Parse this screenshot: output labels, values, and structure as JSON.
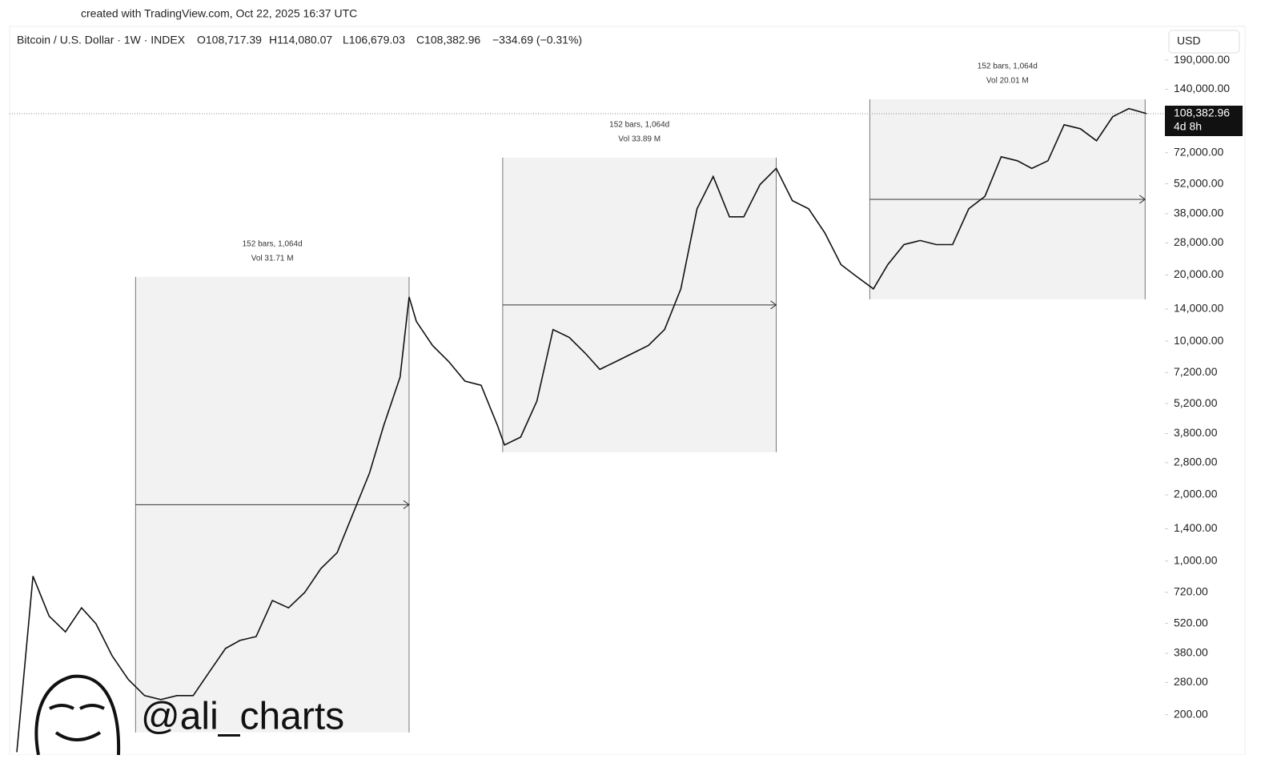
{
  "header": {
    "credit": "created with TradingView.com, Oct 22, 2025 16:37 UTC"
  },
  "chart_data": {
    "type": "line",
    "symbol": "Bitcoin / U.S. Dollar · 1W · INDEX",
    "ohlc": [
      "O108,717.39",
      "H114,080.07",
      "L106,679.03",
      "C108,382.96",
      "−334.69 (−0.31%)"
    ],
    "currency": "USD",
    "log_scale": true,
    "color": "#111111",
    "x": [
      0,
      9,
      18,
      27,
      36,
      44,
      53,
      62,
      71,
      80,
      89,
      98,
      107,
      116,
      124,
      133,
      142,
      151,
      160,
      169,
      178,
      187,
      196,
      204,
      213,
      218,
      222,
      231,
      240,
      249,
      258,
      267,
      271,
      280,
      289,
      298,
      307,
      316,
      324,
      333,
      342,
      351,
      360,
      369,
      378,
      387,
      396,
      404,
      413,
      422,
      431,
      440,
      449,
      458,
      467,
      476,
      484,
      493,
      502,
      511,
      520,
      529,
      538,
      547,
      556,
      564,
      573,
      582,
      591,
      600,
      609,
      618,
      628
    ],
    "values": [
      135,
      853,
      561,
      476,
      612,
      518,
      370,
      289,
      244,
      234,
      244,
      244,
      313,
      400,
      435,
      453,
      661,
      612,
      719,
      923,
      1091,
      1655,
      2511,
      4157,
      6857,
      15900,
      12300,
      9560,
      8080,
      6580,
      6300,
      4157,
      3370,
      3660,
      5340,
      11300,
      10400,
      8790,
      7440,
      8080,
      8790,
      9560,
      11300,
      17300,
      40000,
      56100,
      36800,
      36800,
      51600,
      61100,
      43600,
      40000,
      31100,
      22300,
      19600,
      17300,
      22300,
      27500,
      28700,
      27500,
      27500,
      40000,
      45600,
      69000,
      66200,
      61100,
      66200,
      96500,
      92600,
      81600,
      105000,
      114400,
      108383
    ],
    "xlim": [
      -4,
      638
    ],
    "ylim": [
      131,
      212000
    ],
    "yticks": [
      {
        "value": 190000,
        "label": "190,000.00"
      },
      {
        "value": 140000,
        "label": "140,000.00"
      },
      {
        "value": 72000,
        "label": "72,000.00"
      },
      {
        "value": 52000,
        "label": "52,000.00"
      },
      {
        "value": 38000,
        "label": "38,000.00"
      },
      {
        "value": 28000,
        "label": "28,000.00"
      },
      {
        "value": 20000,
        "label": "20,000.00"
      },
      {
        "value": 14000,
        "label": "14,000.00"
      },
      {
        "value": 10000,
        "label": "10,000.00"
      },
      {
        "value": 7200,
        "label": "7,200.00"
      },
      {
        "value": 5200,
        "label": "5,200.00"
      },
      {
        "value": 3800,
        "label": "3,800.00"
      },
      {
        "value": 2800,
        "label": "2,800.00"
      },
      {
        "value": 2000,
        "label": "2,000.00"
      },
      {
        "value": 1400,
        "label": "1,400.00"
      },
      {
        "value": 1000,
        "label": "1,000.00"
      },
      {
        "value": 720,
        "label": "720.00"
      },
      {
        "value": 520,
        "label": "520.00"
      },
      {
        "value": 380,
        "label": "380.00"
      },
      {
        "value": 280,
        "label": "280.00"
      },
      {
        "value": 200,
        "label": "200.00"
      }
    ],
    "last_price": {
      "value": 108382.96,
      "label": "108,382.96"
    },
    "countdown": "4d 8h",
    "ranges": [
      {
        "x_range": [
          66,
          218
        ],
        "price_range": [
          166,
          19600
        ],
        "bars": "152 bars, 1,064d",
        "vol": "Vol 31.71 M"
      },
      {
        "x_range": [
          270,
          422
        ],
        "price_range": [
          3125,
          68400
        ],
        "bars": "152 bars, 1,064d",
        "vol": "Vol 33.89 M"
      },
      {
        "x_range": [
          474,
          627
        ],
        "price_range": [
          15500,
          126000
        ],
        "bars": "152 bars, 1,064d",
        "vol": "Vol 20.01 M"
      }
    ],
    "watermark": "@ali_charts"
  }
}
